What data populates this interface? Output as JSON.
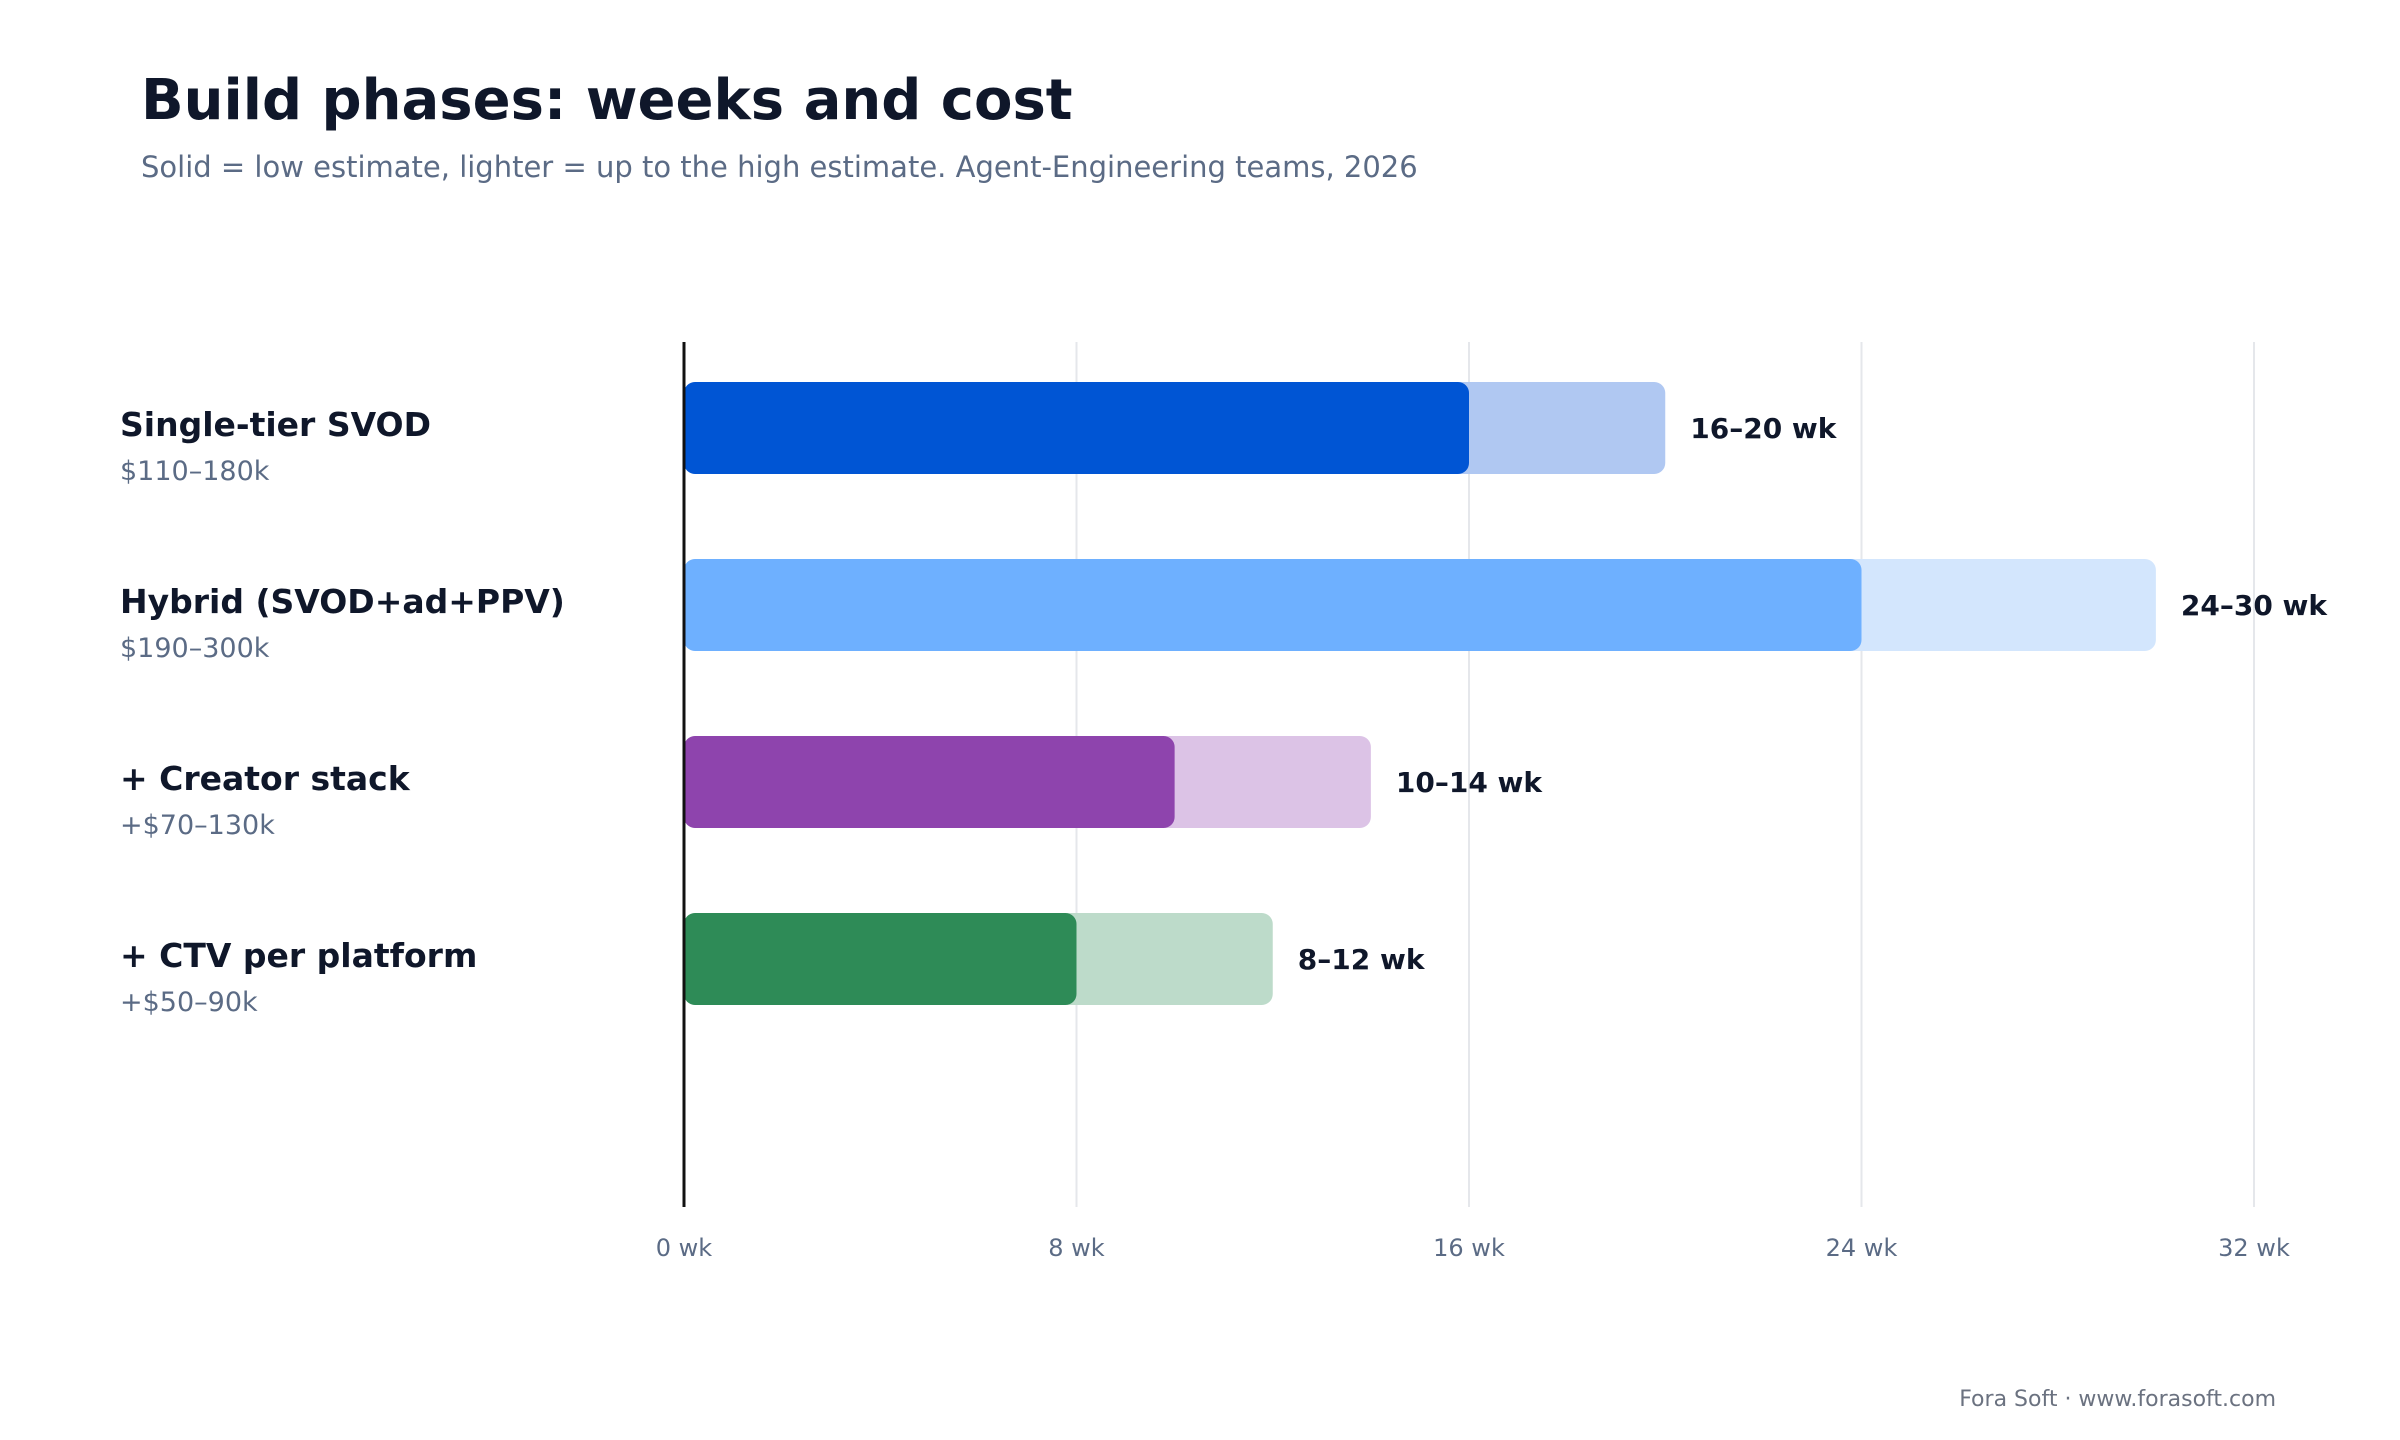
{
  "header": {
    "title": "Build phases: weeks and cost",
    "subtitle": "Solid = low estimate, lighter = up to the high estimate. Agent-Engineering teams, 2026"
  },
  "footer": {
    "credit": "Fora Soft · www.forasoft.com"
  },
  "chart_data": {
    "type": "bar",
    "orientation": "horizontal",
    "categories": [
      "Single-tier SVOD",
      "Hybrid (SVOD+ad+PPV)",
      "+ Creator stack",
      "+ CTV per platform"
    ],
    "cost_labels": [
      "$110–180k",
      "$190–300k",
      "+$70–130k",
      "+$50–90k"
    ],
    "series": [
      {
        "values": [
          16,
          24,
          10,
          8
        ]
      },
      {
        "values": [
          20,
          30,
          14,
          12
        ]
      }
    ],
    "value_labels": [
      "16–20 wk",
      "24–30 wk",
      "10–14 wk",
      "8–12 wk"
    ],
    "colors": {
      "solid": [
        "#0055d4",
        "#6eb0ff",
        "#8e44ad",
        "#2e8b57"
      ],
      "light": [
        "#b0c8f2",
        "#d3e6fd",
        "#dcc3e6",
        "#bddbca"
      ]
    },
    "xlim": [
      0,
      32
    ],
    "xticks": [
      0,
      8,
      16,
      24,
      32
    ],
    "xtick_labels": [
      "0 wk",
      "8 wk",
      "16 wk",
      "24 wk",
      "32 wk"
    ],
    "grid": true,
    "legend": "none"
  }
}
